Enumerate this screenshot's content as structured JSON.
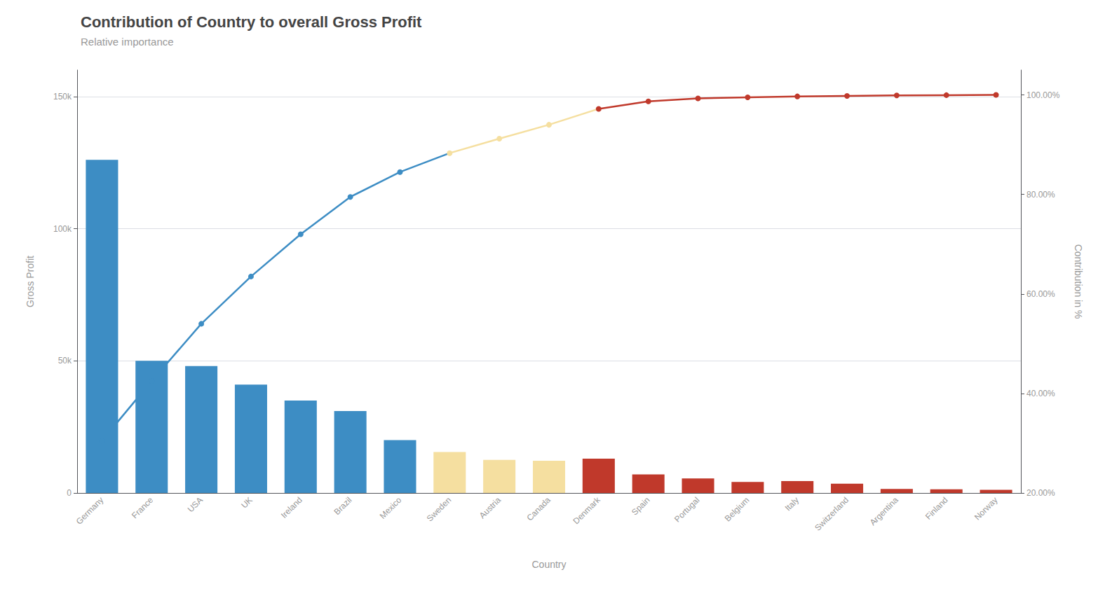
{
  "chart_data": {
    "type": "bar",
    "title": "Contribution of Country to overall Gross Profit",
    "subtitle": "Relative importance",
    "xlabel": "Country",
    "ylabel": "Gross Profit",
    "y2label": "Contribution in %",
    "categories": [
      "Germany",
      "France",
      "USA",
      "UK",
      "Ireland",
      "Brazil",
      "Mexico",
      "Sweden",
      "Austria",
      "Canada",
      "Denmark",
      "Spain",
      "Portugal",
      "Belgium",
      "Italy",
      "Switzerland",
      "Argentina",
      "Finland",
      "Norway"
    ],
    "series": [
      {
        "type": "bar",
        "colors": [
          "#3d8dc4",
          "#3d8dc4",
          "#3d8dc4",
          "#3d8dc4",
          "#3d8dc4",
          "#3d8dc4",
          "#3d8dc4",
          "#f5dfa0",
          "#f5dfa0",
          "#f5dfa0",
          "#c0392b",
          "#c0392b",
          "#c0392b",
          "#c0392b",
          "#c0392b",
          "#c0392b",
          "#c0392b",
          "#c0392b",
          "#c0392b"
        ],
        "values": [
          126000,
          50000,
          48000,
          41000,
          35000,
          31000,
          20000,
          15500,
          12500,
          12200,
          13000,
          7000,
          5500,
          4200,
          4500,
          3500,
          1500,
          1400,
          1200
        ]
      },
      {
        "type": "line",
        "axis": "y2",
        "marker": "circle",
        "colors": [
          "#3d8dc4",
          "#3d8dc4",
          "#3d8dc4",
          "#3d8dc4",
          "#3d8dc4",
          "#3d8dc4",
          "#3d8dc4",
          "#f5dfa0",
          "#f5dfa0",
          "#f5dfa0",
          "#c0392b",
          "#c0392b",
          "#c0392b",
          "#c0392b",
          "#c0392b",
          "#c0392b",
          "#c0392b",
          "#c0392b",
          "#c0392b"
        ],
        "values": [
          30.5,
          42.5,
          54.0,
          63.5,
          72.0,
          79.5,
          84.5,
          88.3,
          91.2,
          94.0,
          97.2,
          98.7,
          99.3,
          99.5,
          99.7,
          99.8,
          99.9,
          99.95,
          100.0
        ]
      }
    ],
    "ylim": [
      0,
      160000
    ],
    "yticks": [
      0,
      {
        "value": 50000,
        "label": "50k"
      },
      {
        "value": 100000,
        "label": "100k"
      },
      {
        "value": 150000,
        "label": "150k"
      }
    ],
    "y2lim": [
      20.0,
      105.0
    ],
    "y2ticks": [
      {
        "value": 20,
        "label": "20.00%"
      },
      {
        "value": 40,
        "label": "40.00%"
      },
      {
        "value": 60,
        "label": "60.00%"
      },
      {
        "value": 80,
        "label": "80.00%"
      },
      {
        "value": 100,
        "label": "100.00%"
      }
    ],
    "grid": true
  }
}
